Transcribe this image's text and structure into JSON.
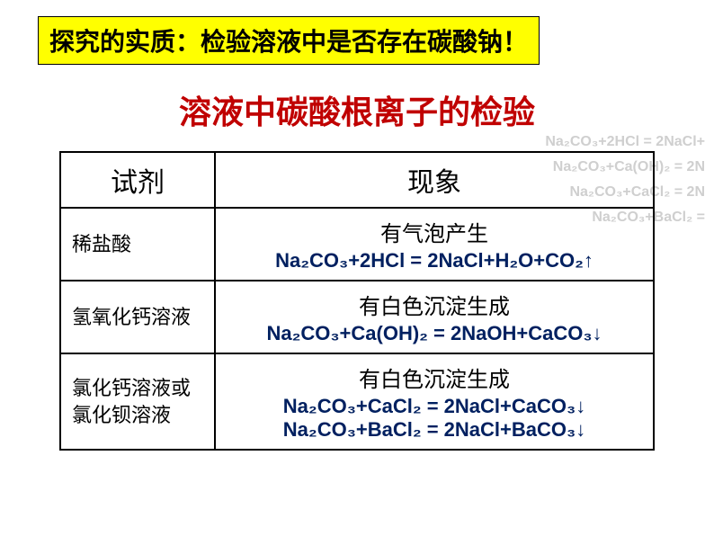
{
  "banner": "探究的实质：检验溶液中是否存在碳酸钠！",
  "title": "溶液中碳酸根离子的检验",
  "colors": {
    "banner_bg": "#ffff00",
    "title_color": "#c00000",
    "equation_color": "#002060",
    "ghost_color": "#cfcfcf",
    "border_color": "#000000"
  },
  "headers": {
    "reagent": "试剂",
    "phenomenon": "现象"
  },
  "rows": [
    {
      "reagent": "稀盐酸",
      "phenomenon": "有气泡产生",
      "eq1": "Na₂CO₃+2HCl = 2NaCl+H₂O+CO₂↑"
    },
    {
      "reagent": "氢氧化钙溶液",
      "phenomenon": "有白色沉淀生成",
      "eq1": "Na₂CO₃+Ca(OH)₂ = 2NaOH+CaCO₃↓"
    },
    {
      "reagent": "氯化钙溶液或氯化钡溶液",
      "phenomenon": "有白色沉淀生成",
      "eq1": "Na₂CO₃+CaCl₂ = 2NaCl+CaCO₃↓",
      "eq2": "Na₂CO₃+BaCl₂ = 2NaCl+BaCO₃↓"
    }
  ],
  "ghost_lines": [
    "Na₂CO₃+2HCl = 2NaCl+",
    "Na₂CO₃+Ca(OH)₂ = 2N",
    "Na₂CO₃+CaCl₂ = 2N",
    "Na₂CO₃+BaCl₂ ="
  ]
}
